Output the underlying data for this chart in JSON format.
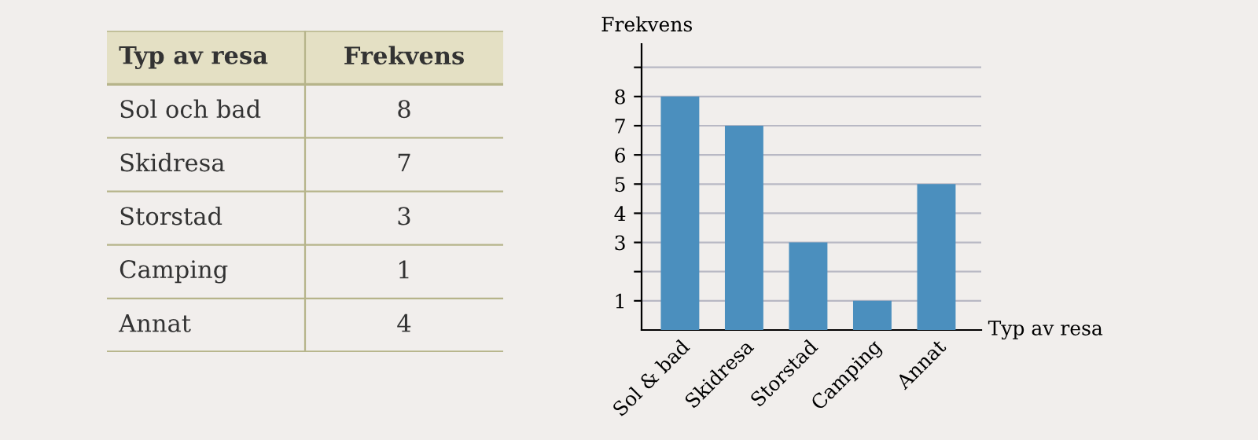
{
  "chart_data": [
    {
      "type": "other",
      "annotations": [
        "Typ av resa",
        "Frekvens",
        "Sol och bad",
        "8",
        "Skidresa",
        "7",
        "Storstad",
        "3",
        "Camping",
        "1",
        "Annat",
        "4"
      ]
    },
    {
      "type": "bar",
      "ylabel": "Frekvens",
      "xlabel": "Typ av resa",
      "categories": [
        "Sol & bad",
        "Skidresa",
        "Storstad",
        "Camping",
        "Annat"
      ],
      "values": [
        8,
        7,
        3,
        1,
        5
      ],
      "color": "#4b8fbe",
      "ylim": [
        0,
        9.8
      ],
      "yticks": [
        1,
        {
          "value": 2,
          "label": null
        },
        3,
        4,
        5,
        6,
        7,
        8,
        {
          "value": 9,
          "label": null
        }
      ],
      "grid": "y"
    }
  ]
}
